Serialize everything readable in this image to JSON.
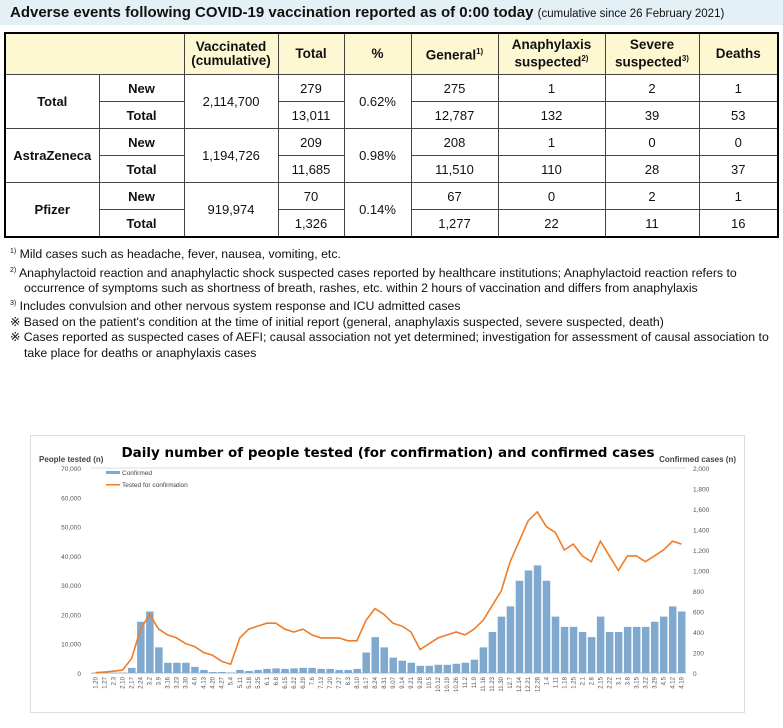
{
  "title": {
    "main": "Adverse events following COVID-19 vaccination reported as of 0:00 today",
    "sub": "(cumulative since 26 February 2021)"
  },
  "table": {
    "headers": {
      "vaccinated": "Vaccinated (cumulative)",
      "total": "Total",
      "pct": "%",
      "general": "General",
      "general_sup": "1)",
      "anaphylaxis": "Anaphylaxis suspected",
      "anaphylaxis_sup": "2)",
      "severe": "Severe suspected",
      "severe_sup": "3)",
      "deaths": "Deaths"
    },
    "groups": [
      {
        "name": "Total",
        "vaccinated": "2,114,700",
        "pct": "0.62%",
        "rows": [
          {
            "type": "New",
            "total": "279",
            "general": "275",
            "anaphylaxis": "1",
            "severe": "2",
            "deaths": "1"
          },
          {
            "type": "Total",
            "total": "13,011",
            "general": "12,787",
            "anaphylaxis": "132",
            "severe": "39",
            "deaths": "53"
          }
        ]
      },
      {
        "name": "AstraZeneca",
        "vaccinated": "1,194,726",
        "pct": "0.98%",
        "rows": [
          {
            "type": "New",
            "total": "209",
            "general": "208",
            "anaphylaxis": "1",
            "severe": "0",
            "deaths": "0"
          },
          {
            "type": "Total",
            "total": "11,685",
            "general": "11,510",
            "anaphylaxis": "110",
            "severe": "28",
            "deaths": "37"
          }
        ]
      },
      {
        "name": "Pfizer",
        "vaccinated": "919,974",
        "pct": "0.14%",
        "rows": [
          {
            "type": "New",
            "total": "70",
            "general": "67",
            "anaphylaxis": "0",
            "severe": "2",
            "deaths": "1"
          },
          {
            "type": "Total",
            "total": "1,326",
            "general": "1,277",
            "anaphylaxis": "22",
            "severe": "11",
            "deaths": "16"
          }
        ]
      }
    ]
  },
  "notes": [
    {
      "mark": "1)",
      "text": "Mild cases such as headache, fever, nausea, vomiting, etc."
    },
    {
      "mark": "2)",
      "text": "Anaphylactoid reaction and anaphylactic shock suspected cases reported by healthcare institutions; Anaphylactoid reaction refers to occurrence of symptoms such as shortness of breath, rashes, etc. within 2 hours of vaccination and differs from anaphylaxis"
    },
    {
      "mark": "3)",
      "text": "Includes convulsion and other nervous system response and ICU admitted cases"
    },
    {
      "mark": "※",
      "text": "Based on the patient's condition at the time of initial report (general, anaphylaxis suspected, severe suspected, death)"
    },
    {
      "mark": "※",
      "text": "Cases reported as suspected cases of AEFI; causal association not yet determined; investigation for assessment of causal association to take place for deaths or anaphylaxis cases"
    }
  ],
  "chart_data": {
    "type": "bar+line",
    "title": "Daily number of people tested (for confirmation) and confirmed cases",
    "ylabel_left": "People tested (n)",
    "ylabel_right": "Confirmed cases (n)",
    "ylim_left": [
      0,
      70000
    ],
    "ylim_right": [
      0,
      2000
    ],
    "yticks_left": [
      "0",
      "10,000",
      "20,000",
      "30,000",
      "40,000",
      "50,000",
      "60,000",
      "70,000"
    ],
    "yticks_right": [
      "0",
      "200",
      "400",
      "600",
      "800",
      "1,000",
      "1,200",
      "1,400",
      "1,600",
      "1,800",
      "2,000"
    ],
    "legend": [
      "Confirmed",
      "Tested for confirmation"
    ],
    "colors": {
      "confirmed": "#7fa9cf",
      "tested": "#ee7d2b"
    },
    "categories": [
      "1.20",
      "1.27",
      "2.3",
      "2.10",
      "2.17",
      "2.24",
      "3.2",
      "3.9",
      "3.16",
      "3.23",
      "3.30",
      "4.6",
      "4.13",
      "4.20",
      "4.27",
      "5.4",
      "5.11",
      "5.18",
      "5.25",
      "6.1",
      "6.8",
      "6.15",
      "6.22",
      "6.29",
      "7.6",
      "7.13",
      "7.20",
      "7.27",
      "8.3",
      "8.10",
      "8.17",
      "8.24",
      "8.31",
      "9.07",
      "9.14",
      "9.21",
      "9.28",
      "10.5",
      "10.12",
      "10.19",
      "10.26",
      "11.2",
      "11.9",
      "11.16",
      "11.23",
      "11.30",
      "12.7",
      "12.14",
      "12.21",
      "12.28",
      "1.4",
      "1.11",
      "1.18",
      "1.25",
      "2.1",
      "2.8",
      "2.15",
      "2.22",
      "3.1",
      "3.8",
      "3.15",
      "3.22",
      "3.29",
      "4.5",
      "4.12",
      "4.19"
    ],
    "series": [
      {
        "name": "Tested for confirmation",
        "axis": "left",
        "values": [
          100,
          300,
          600,
          1000,
          5000,
          15000,
          20000,
          15000,
          13000,
          12000,
          10000,
          9000,
          7000,
          6000,
          4000,
          3000,
          12000,
          15000,
          16000,
          17000,
          17000,
          15000,
          14000,
          15000,
          13000,
          12000,
          12000,
          12000,
          11000,
          11000,
          18000,
          22000,
          20000,
          17000,
          16000,
          14000,
          8000,
          10000,
          12000,
          13000,
          14000,
          13000,
          15000,
          18000,
          23000,
          28000,
          38000,
          45000,
          52000,
          55000,
          50000,
          48000,
          42000,
          44000,
          40000,
          38000,
          45000,
          40000,
          35000,
          40000,
          40000,
          38000,
          40000,
          42000,
          45000,
          44000
        ]
      },
      {
        "name": "Confirmed",
        "axis": "right",
        "values": [
          1,
          2,
          2,
          3,
          50,
          500,
          600,
          250,
          100,
          100,
          100,
          60,
          30,
          10,
          10,
          5,
          30,
          20,
          30,
          40,
          45,
          40,
          45,
          50,
          50,
          40,
          40,
          30,
          30,
          40,
          200,
          350,
          250,
          150,
          120,
          100,
          70,
          70,
          80,
          80,
          90,
          100,
          130,
          250,
          400,
          550,
          650,
          900,
          1000,
          1050,
          900,
          550,
          450,
          450,
          400,
          350,
          550,
          400,
          400,
          450,
          450,
          450,
          500,
          550,
          650,
          600
        ]
      }
    ]
  }
}
